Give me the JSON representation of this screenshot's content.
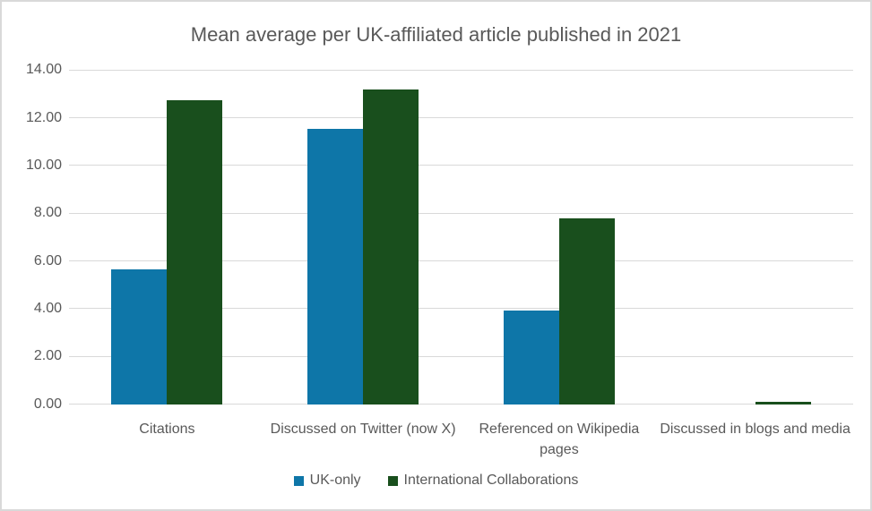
{
  "theme": {
    "text_color": "#595959",
    "gridline_color": "#D9D9D9",
    "border_color": "#D9D9D9",
    "background_color": "#FFFFFF"
  },
  "chart_data": {
    "type": "bar",
    "title": "Mean average per UK-affiliated article published in 2021",
    "categories": [
      "Citations",
      "Discussed on Twitter (now X)",
      "Referenced on Wikipedia pages",
      "Discussed in blogs and media"
    ],
    "series": [
      {
        "name": "UK-only",
        "color": "#0E76A8",
        "values": [
          5.65,
          11.55,
          3.95,
          0.01
        ]
      },
      {
        "name": "International Collaborations",
        "color": "#194F1D",
        "values": [
          12.75,
          13.2,
          7.8,
          0.12
        ]
      }
    ],
    "xlabel": "",
    "ylabel": "",
    "ylim": [
      0,
      14
    ],
    "ytick_step": 2,
    "ytick_decimals": 2,
    "grid": "horizontal",
    "legend_position": "bottom"
  }
}
